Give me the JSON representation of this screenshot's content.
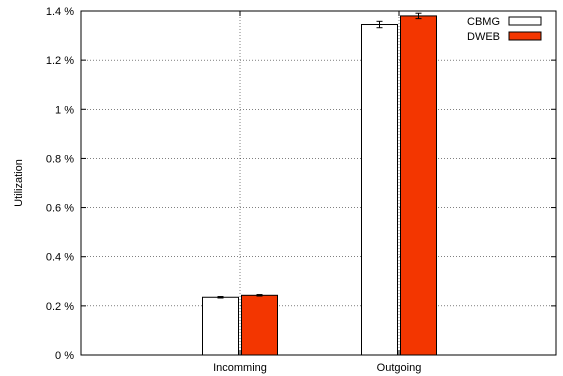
{
  "chart_data": {
    "type": "bar",
    "categories": [
      "Incomming",
      "Outgoing"
    ],
    "series": [
      {
        "name": "CBMG",
        "values": [
          0.235,
          1.345
        ],
        "errors": [
          0.003,
          0.013
        ],
        "color": "#ffffff"
      },
      {
        "name": "DWEB",
        "values": [
          0.243,
          1.38
        ],
        "errors": [
          0.003,
          0.011
        ],
        "color": "#f33600"
      }
    ],
    "ylabel": "Utilization",
    "xlabel": "",
    "ylim": [
      0,
      1.4
    ],
    "yticks": [
      0,
      0.2,
      0.4,
      0.6,
      0.8,
      1,
      1.2,
      1.4
    ],
    "ytick_labels": [
      "0 %",
      "0.2 %",
      "0.4 %",
      "0.6 %",
      "0.8 %",
      "1 %",
      "1.2 %",
      "1.4 %"
    ],
    "grid": true,
    "legend_position": "top-right",
    "bar_edge_color": "#000000"
  }
}
